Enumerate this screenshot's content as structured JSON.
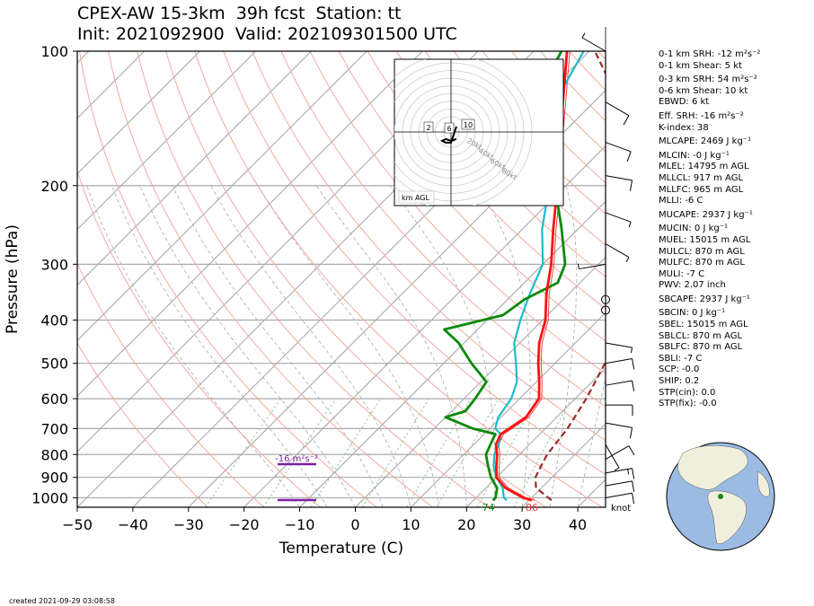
{
  "title_line1": "CPEX-AW 15-3km  39h fcst  Station: tt",
  "title_line2": "Init: 2021092900  Valid: 202109301500 UTC",
  "created": "created 2021-09-29 03:08:58",
  "params": [
    {
      "text": "0-1 km SRH: -12 m²s⁻²"
    },
    {
      "text": "0-1 km Shear: 5 kt"
    },
    {
      "text": "0-3 km SRH: 54 m²s⁻²"
    },
    {
      "text": "0-6 km Shear: 10 kt"
    },
    {
      "text": "EBWD: 6 kt"
    },
    {
      "text": "Eff. SRH: -16 m²s⁻²"
    },
    {
      "text": "K-index: 38"
    },
    {
      "text": "MLCAPE: 2469 J kg⁻¹"
    },
    {
      "text": "MLCIN: -0 J kg⁻¹"
    },
    {
      "text": "MLEL: 14795 m AGL"
    },
    {
      "text": "MLLCL: 917 m AGL"
    },
    {
      "text": "MLLFC: 965 m AGL"
    },
    {
      "text": "MLLI: -6 C"
    },
    {
      "text": "MUCAPE: 2937 J kg⁻¹"
    },
    {
      "text": "MUCIN: 0 J kg⁻¹"
    },
    {
      "text": "MUEL: 15015 m AGL"
    },
    {
      "text": "MULCL: 870 m AGL"
    },
    {
      "text": "MULFC: 870 m AGL"
    },
    {
      "text": "MULI: -7 C"
    },
    {
      "text": "PWV: 2.07 inch"
    },
    {
      "text": "SBCAPE: 2937 J kg⁻¹"
    },
    {
      "text": "SBCIN: 0 J kg⁻¹"
    },
    {
      "text": "SBEL: 15015 m AGL"
    },
    {
      "text": "SBLCL: 870 m AGL"
    },
    {
      "text": "SBLFC: 870 m AGL"
    },
    {
      "text": "SBLI: -7 C"
    },
    {
      "text": "SCP: -0.0"
    },
    {
      "text": "SHIP: 0.2"
    },
    {
      "text": "STP(cin): 0.0"
    },
    {
      "text": "STP(fix): -0.0"
    }
  ],
  "chart_data": {
    "type": "skew-t",
    "xlabel": "Temperature (C)",
    "ylabel": "Pressure (hPa)",
    "xlim": [
      -50,
      45
    ],
    "ylim": [
      1050,
      100
    ],
    "x_ticks": [
      -50,
      -40,
      -30,
      -20,
      -10,
      0,
      10,
      20,
      30,
      40
    ],
    "y_ticks": [
      100,
      200,
      300,
      400,
      500,
      600,
      700,
      800,
      900,
      1000
    ],
    "surface_temp_label": "86",
    "surface_dewpoint_label": "74",
    "wind_unit_label": "knot",
    "effective_srh_label": "-16 m²s⁻²",
    "temperature_profile": [
      [
        1013,
        30.5
      ],
      [
        1000,
        28.5
      ],
      [
        950,
        23.5
      ],
      [
        900,
        20
      ],
      [
        850,
        18
      ],
      [
        800,
        16
      ],
      [
        760,
        14
      ],
      [
        720,
        13
      ],
      [
        700,
        13.5
      ],
      [
        660,
        14.5
      ],
      [
        600,
        13.5
      ],
      [
        550,
        10.5
      ],
      [
        500,
        7
      ],
      [
        450,
        3.5
      ],
      [
        400,
        0.5
      ],
      [
        350,
        -4
      ],
      [
        300,
        -8.5
      ],
      [
        250,
        -14.5
      ],
      [
        200,
        -21.5
      ],
      [
        150,
        -31
      ],
      [
        100,
        -44
      ]
    ],
    "virtual_temperature_profile": [
      [
        1013,
        31
      ],
      [
        1000,
        29
      ],
      [
        950,
        24
      ],
      [
        900,
        20.5
      ],
      [
        850,
        18.5
      ],
      [
        800,
        16.5
      ],
      [
        760,
        14.5
      ],
      [
        720,
        13.5
      ],
      [
        700,
        14
      ],
      [
        660,
        15
      ],
      [
        600,
        14
      ],
      [
        550,
        11
      ],
      [
        500,
        7.5
      ],
      [
        450,
        4
      ],
      [
        400,
        1
      ],
      [
        350,
        -3.5
      ],
      [
        300,
        -8
      ],
      [
        250,
        -14
      ],
      [
        200,
        -21
      ],
      [
        150,
        -30.5
      ],
      [
        100,
        -43.5
      ]
    ],
    "parcel_profile": [
      [
        1013,
        34
      ],
      [
        950,
        29
      ],
      [
        900,
        27
      ],
      [
        850,
        26
      ],
      [
        800,
        25
      ],
      [
        700,
        24
      ],
      [
        600,
        22
      ],
      [
        500,
        19
      ],
      [
        400,
        14
      ],
      [
        300,
        7
      ],
      [
        250,
        2
      ],
      [
        200,
        -6
      ],
      [
        150,
        -18
      ],
      [
        100,
        -39
      ]
    ],
    "dewpoint_profile": [
      [
        1013,
        23.5
      ],
      [
        1000,
        23.5
      ],
      [
        950,
        22
      ],
      [
        900,
        19
      ],
      [
        850,
        16.5
      ],
      [
        800,
        14
      ],
      [
        760,
        13
      ],
      [
        720,
        12
      ],
      [
        700,
        7
      ],
      [
        660,
        0
      ],
      [
        640,
        2.5
      ],
      [
        600,
        2
      ],
      [
        550,
        1
      ],
      [
        500,
        -5
      ],
      [
        450,
        -11
      ],
      [
        420,
        -16
      ],
      [
        390,
        -8
      ],
      [
        360,
        -7
      ],
      [
        330,
        -4
      ],
      [
        300,
        -6
      ],
      [
        250,
        -13
      ],
      [
        200,
        -22
      ],
      [
        150,
        -35
      ],
      [
        130,
        -41
      ],
      [
        120,
        -42
      ],
      [
        100,
        -45
      ]
    ],
    "wetbulb_profile": [
      [
        1013,
        26
      ],
      [
        1000,
        25
      ],
      [
        950,
        23
      ],
      [
        900,
        20
      ],
      [
        850,
        17.5
      ],
      [
        800,
        15.5
      ],
      [
        760,
        14.5
      ],
      [
        720,
        13
      ],
      [
        700,
        11
      ],
      [
        660,
        9.5
      ],
      [
        600,
        8.5
      ],
      [
        550,
        6.5
      ],
      [
        500,
        3
      ],
      [
        450,
        -1
      ],
      [
        400,
        -4
      ],
      [
        350,
        -7
      ],
      [
        300,
        -10
      ],
      [
        250,
        -16.5
      ],
      [
        200,
        -23
      ],
      [
        150,
        -32
      ],
      [
        130,
        -37
      ],
      [
        100,
        -41
      ]
    ],
    "hodograph": {
      "ring_labels": [
        "20kt",
        "40kt",
        "60kt",
        "80kt"
      ],
      "height_markers": [
        "2",
        "6",
        "10"
      ],
      "legend": "km AGL",
      "path_kt": [
        [
          3,
          -3
        ],
        [
          2,
          0
        ],
        [
          1,
          3
        ],
        [
          0,
          6
        ],
        [
          -3,
          6
        ],
        [
          -5,
          5
        ],
        [
          -3,
          4
        ],
        [
          0,
          5
        ],
        [
          3,
          4
        ]
      ]
    }
  }
}
